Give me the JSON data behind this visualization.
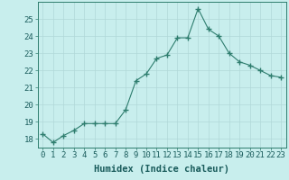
{
  "x": [
    0,
    1,
    2,
    3,
    4,
    5,
    6,
    7,
    8,
    9,
    10,
    11,
    12,
    13,
    14,
    15,
    16,
    17,
    18,
    19,
    20,
    21,
    22,
    23
  ],
  "y": [
    18.3,
    17.8,
    18.2,
    18.5,
    18.9,
    18.9,
    18.9,
    18.9,
    19.7,
    21.4,
    21.8,
    22.7,
    22.9,
    23.9,
    23.9,
    25.6,
    24.4,
    24.0,
    23.0,
    22.5,
    22.3,
    22.0,
    21.7,
    21.6
  ],
  "line_color": "#2e7d6e",
  "marker": "+",
  "marker_size": 4,
  "bg_color": "#c8eeed",
  "grid_color": "#b0d8d8",
  "xlabel": "Humidex (Indice chaleur)",
  "xlim": [
    -0.5,
    23.5
  ],
  "ylim": [
    17.5,
    26.0
  ],
  "yticks": [
    18,
    19,
    20,
    21,
    22,
    23,
    24,
    25
  ],
  "xticks": [
    0,
    1,
    2,
    3,
    4,
    5,
    6,
    7,
    8,
    9,
    10,
    11,
    12,
    13,
    14,
    15,
    16,
    17,
    18,
    19,
    20,
    21,
    22,
    23
  ],
  "xlabel_fontsize": 7.5,
  "tick_fontsize": 6.5,
  "label_color": "#1a5c5c",
  "spine_color": "#2e7d6e",
  "line_width": 0.8,
  "marker_color": "#2e7d6e"
}
